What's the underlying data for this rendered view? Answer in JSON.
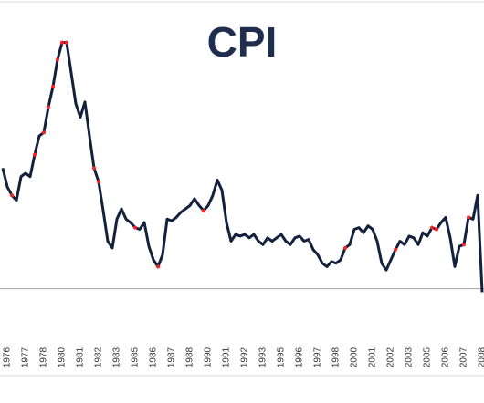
{
  "chart_data": {
    "type": "line",
    "title": "CPI",
    "categories": [
      null,
      "1976",
      null,
      null,
      null,
      "1977",
      null,
      null,
      null,
      "1978",
      null,
      null,
      null,
      "1980",
      null,
      null,
      null,
      "1981",
      null,
      null,
      null,
      "1982",
      null,
      null,
      null,
      "1983",
      null,
      null,
      null,
      "1985",
      null,
      null,
      null,
      "1986",
      null,
      null,
      null,
      "1987",
      null,
      null,
      null,
      "1988",
      null,
      null,
      null,
      "1990",
      null,
      null,
      null,
      "1991",
      null,
      null,
      null,
      "1992",
      null,
      null,
      null,
      "1993",
      null,
      null,
      null,
      "1995",
      null,
      null,
      null,
      "1996",
      null,
      null,
      null,
      "1997",
      null,
      null,
      null,
      "1998",
      null,
      null,
      null,
      "2000",
      null,
      null,
      null,
      "2001",
      null,
      null,
      null,
      "2002",
      null,
      null,
      null,
      "2003",
      null,
      null,
      null,
      "2005",
      null,
      null,
      null,
      "2006",
      null,
      null,
      null,
      "2007",
      null,
      null,
      null,
      "2008"
    ],
    "series": [
      {
        "color": "#14213d",
        "style": "line",
        "values": [
          7.1,
          6.0,
          5.5,
          5.2,
          6.6,
          6.8,
          6.6,
          7.9,
          9.0,
          9.2,
          10.7,
          11.9,
          13.5,
          14.5,
          14.5,
          12.7,
          10.9,
          10.1,
          11.0,
          9.0,
          7.1,
          6.3,
          4.6,
          2.8,
          2.4,
          4.1,
          4.7,
          4.1,
          3.9,
          3.6,
          3.5,
          3.9,
          2.5,
          1.7,
          1.3,
          2.0,
          4.1,
          4.0,
          4.2,
          4.5,
          4.7,
          4.9,
          5.3,
          4.9,
          4.6,
          4.9,
          5.5,
          6.4,
          5.8,
          3.9,
          2.8,
          3.2,
          3.1,
          3.2,
          3.0,
          3.2,
          2.8,
          2.6,
          3.0,
          2.8,
          3.0,
          3.2,
          2.8,
          2.6,
          3.0,
          3.1,
          2.8,
          2.9,
          2.3,
          2.0,
          1.5,
          1.3,
          1.6,
          1.5,
          1.7,
          2.4,
          2.6,
          3.5,
          3.6,
          3.3,
          3.7,
          3.5,
          2.8,
          1.5,
          1.1,
          1.7,
          2.3,
          2.8,
          2.6,
          3.1,
          3.0,
          2.6,
          3.3,
          3.1,
          3.6,
          3.5,
          3.9,
          4.2,
          3.0,
          1.3,
          2.5,
          2.6,
          4.2,
          4.1,
          5.5,
          -0.2
        ]
      },
      {
        "color": "#ff2020",
        "style": "markers",
        "values": [
          null,
          null,
          5.5,
          null,
          null,
          null,
          null,
          7.9,
          null,
          9.2,
          10.7,
          11.9,
          13.5,
          14.5,
          14.5,
          null,
          null,
          null,
          null,
          null,
          7.1,
          6.3,
          null,
          null,
          null,
          null,
          null,
          null,
          null,
          3.6,
          null,
          null,
          null,
          null,
          1.3,
          null,
          null,
          null,
          null,
          null,
          null,
          null,
          null,
          null,
          4.6,
          null,
          null,
          null,
          null,
          null,
          null,
          null,
          null,
          null,
          null,
          null,
          null,
          null,
          null,
          null,
          null,
          null,
          null,
          null,
          null,
          null,
          null,
          null,
          null,
          null,
          null,
          null,
          null,
          null,
          null,
          2.4,
          null,
          null,
          null,
          null,
          null,
          null,
          null,
          null,
          null,
          null,
          2.3,
          null,
          null,
          null,
          null,
          null,
          null,
          null,
          3.6,
          3.5,
          null,
          null,
          null,
          null,
          null,
          2.6,
          4.2,
          null,
          null,
          null
        ]
      }
    ],
    "ylim": [
      -3.4,
      17
    ]
  }
}
